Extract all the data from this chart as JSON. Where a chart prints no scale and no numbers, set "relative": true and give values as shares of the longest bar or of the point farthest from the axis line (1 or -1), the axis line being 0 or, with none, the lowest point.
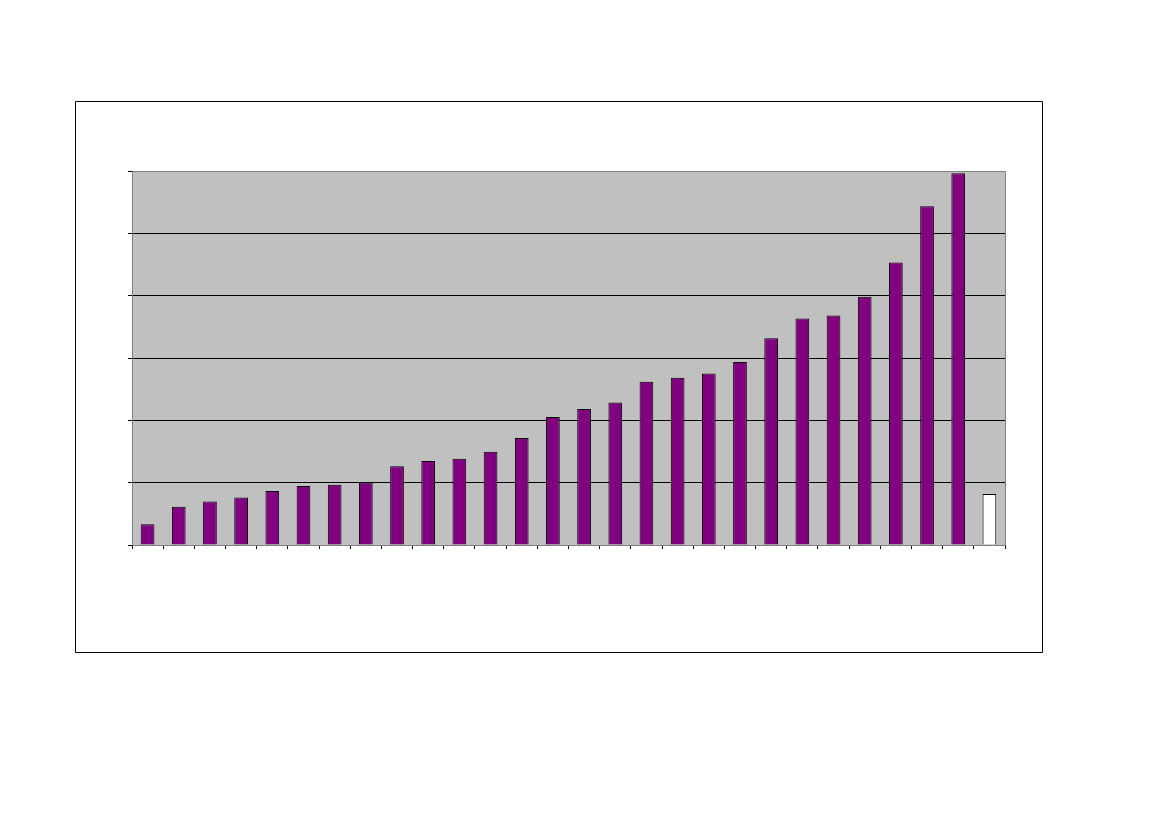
{
  "chart_data": {
    "type": "bar",
    "relative": true,
    "grid": "y",
    "categories": [
      null,
      null,
      null,
      null,
      null,
      null,
      null,
      null,
      null,
      null,
      null,
      null,
      null,
      null,
      null,
      null,
      null,
      null,
      null,
      null,
      null,
      null,
      null,
      null,
      null,
      null,
      null,
      null
    ],
    "values": [
      0.056,
      0.103,
      0.117,
      0.128,
      0.145,
      0.159,
      0.162,
      0.168,
      0.212,
      0.226,
      0.232,
      0.251,
      0.288,
      0.344,
      0.366,
      0.383,
      0.439,
      0.45,
      0.461,
      0.492,
      0.556,
      0.609,
      0.617,
      0.668,
      0.76,
      0.911,
      1,
      0.137
    ],
    "colors": [
      "#800080",
      "#800080",
      "#800080",
      "#800080",
      "#800080",
      "#800080",
      "#800080",
      "#800080",
      "#800080",
      "#800080",
      "#800080",
      "#800080",
      "#800080",
      "#800080",
      "#800080",
      "#800080",
      "#800080",
      "#800080",
      "#800080",
      "#800080",
      "#800080",
      "#800080",
      "#800080",
      "#800080",
      "#800080",
      "#800080",
      "#800080",
      "#ffffff"
    ]
  }
}
